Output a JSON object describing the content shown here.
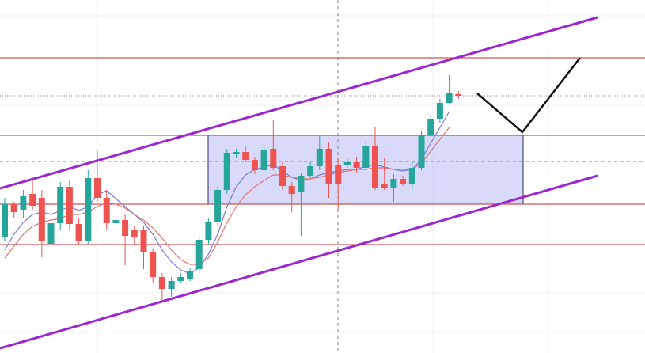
{
  "chart_data": {
    "type": "candlestick",
    "open": [
      146,
      188,
      181,
      201,
      196,
      138,
      164,
      210,
      163,
      141,
      221,
      196,
      164,
      168,
      156,
      156,
      128,
      96,
      81,
      91,
      94,
      106,
      143,
      166,
      206,
      251,
      254,
      244,
      231,
      258,
      236,
      211,
      204,
      224,
      236,
      258,
      238,
      238,
      241,
      234,
      261,
      214,
      208,
      220,
      214,
      234,
      276,
      296,
      316,
      327
    ],
    "high": [
      196,
      191,
      206,
      221,
      206,
      176,
      216,
      218,
      171,
      231,
      256,
      206,
      174,
      176,
      161,
      161,
      131,
      101,
      96,
      101,
      108,
      146,
      171,
      211,
      258,
      258,
      261,
      248,
      261,
      294,
      241,
      216,
      228,
      241,
      276,
      266,
      246,
      246,
      248,
      268,
      286,
      246,
      226,
      224,
      241,
      281,
      301,
      321,
      351,
      331
    ],
    "low": [
      141,
      171,
      171,
      181,
      121,
      131,
      156,
      156,
      136,
      138,
      191,
      156,
      161,
      111,
      136,
      106,
      88,
      66,
      71,
      88,
      91,
      101,
      136,
      161,
      201,
      246,
      241,
      226,
      228,
      231,
      206,
      178,
      148,
      221,
      231,
      196,
      181,
      234,
      228,
      231,
      206,
      206,
      191,
      211,
      206,
      231,
      274,
      291,
      314,
      321
    ],
    "close": [
      188,
      178,
      198,
      186,
      141,
      164,
      210,
      163,
      141,
      221,
      196,
      164,
      168,
      148,
      146,
      128,
      96,
      81,
      91,
      96,
      104,
      143,
      166,
      206,
      253,
      254,
      244,
      231,
      256,
      234,
      211,
      201,
      224,
      236,
      258,
      214,
      214,
      241,
      234,
      261,
      208,
      208,
      220,
      214,
      234,
      276,
      296,
      316,
      328,
      325
    ],
    "up_color": "#26a69a",
    "down_color": "#ef5350",
    "ylim": [
      0,
      446
    ],
    "lines": [
      {
        "color": "#7b7bdc",
        "values": [
          130,
          150,
          165,
          175,
          178,
          175,
          180,
          185,
          180,
          185,
          200,
          205,
          195,
          185,
          175,
          165,
          150,
          130,
          115,
          105,
          100,
          108,
          125,
          150,
          185,
          210,
          225,
          232,
          235,
          238,
          230,
          222,
          218,
          220,
          225,
          228,
          230,
          232,
          232,
          236,
          238,
          235,
          232,
          230,
          232,
          245,
          265,
          285,
          305,
          null
        ]
      },
      {
        "color": "#e57373",
        "values": [
          120,
          135,
          150,
          160,
          165,
          168,
          170,
          175,
          175,
          178,
          185,
          190,
          188,
          183,
          175,
          168,
          158,
          145,
          130,
          118,
          112,
          112,
          120,
          140,
          165,
          185,
          200,
          210,
          218,
          225,
          225,
          222,
          220,
          220,
          222,
          225,
          228,
          230,
          232,
          232,
          234,
          234,
          232,
          232,
          232,
          240,
          255,
          270,
          285,
          null
        ]
      }
    ]
  }
}
